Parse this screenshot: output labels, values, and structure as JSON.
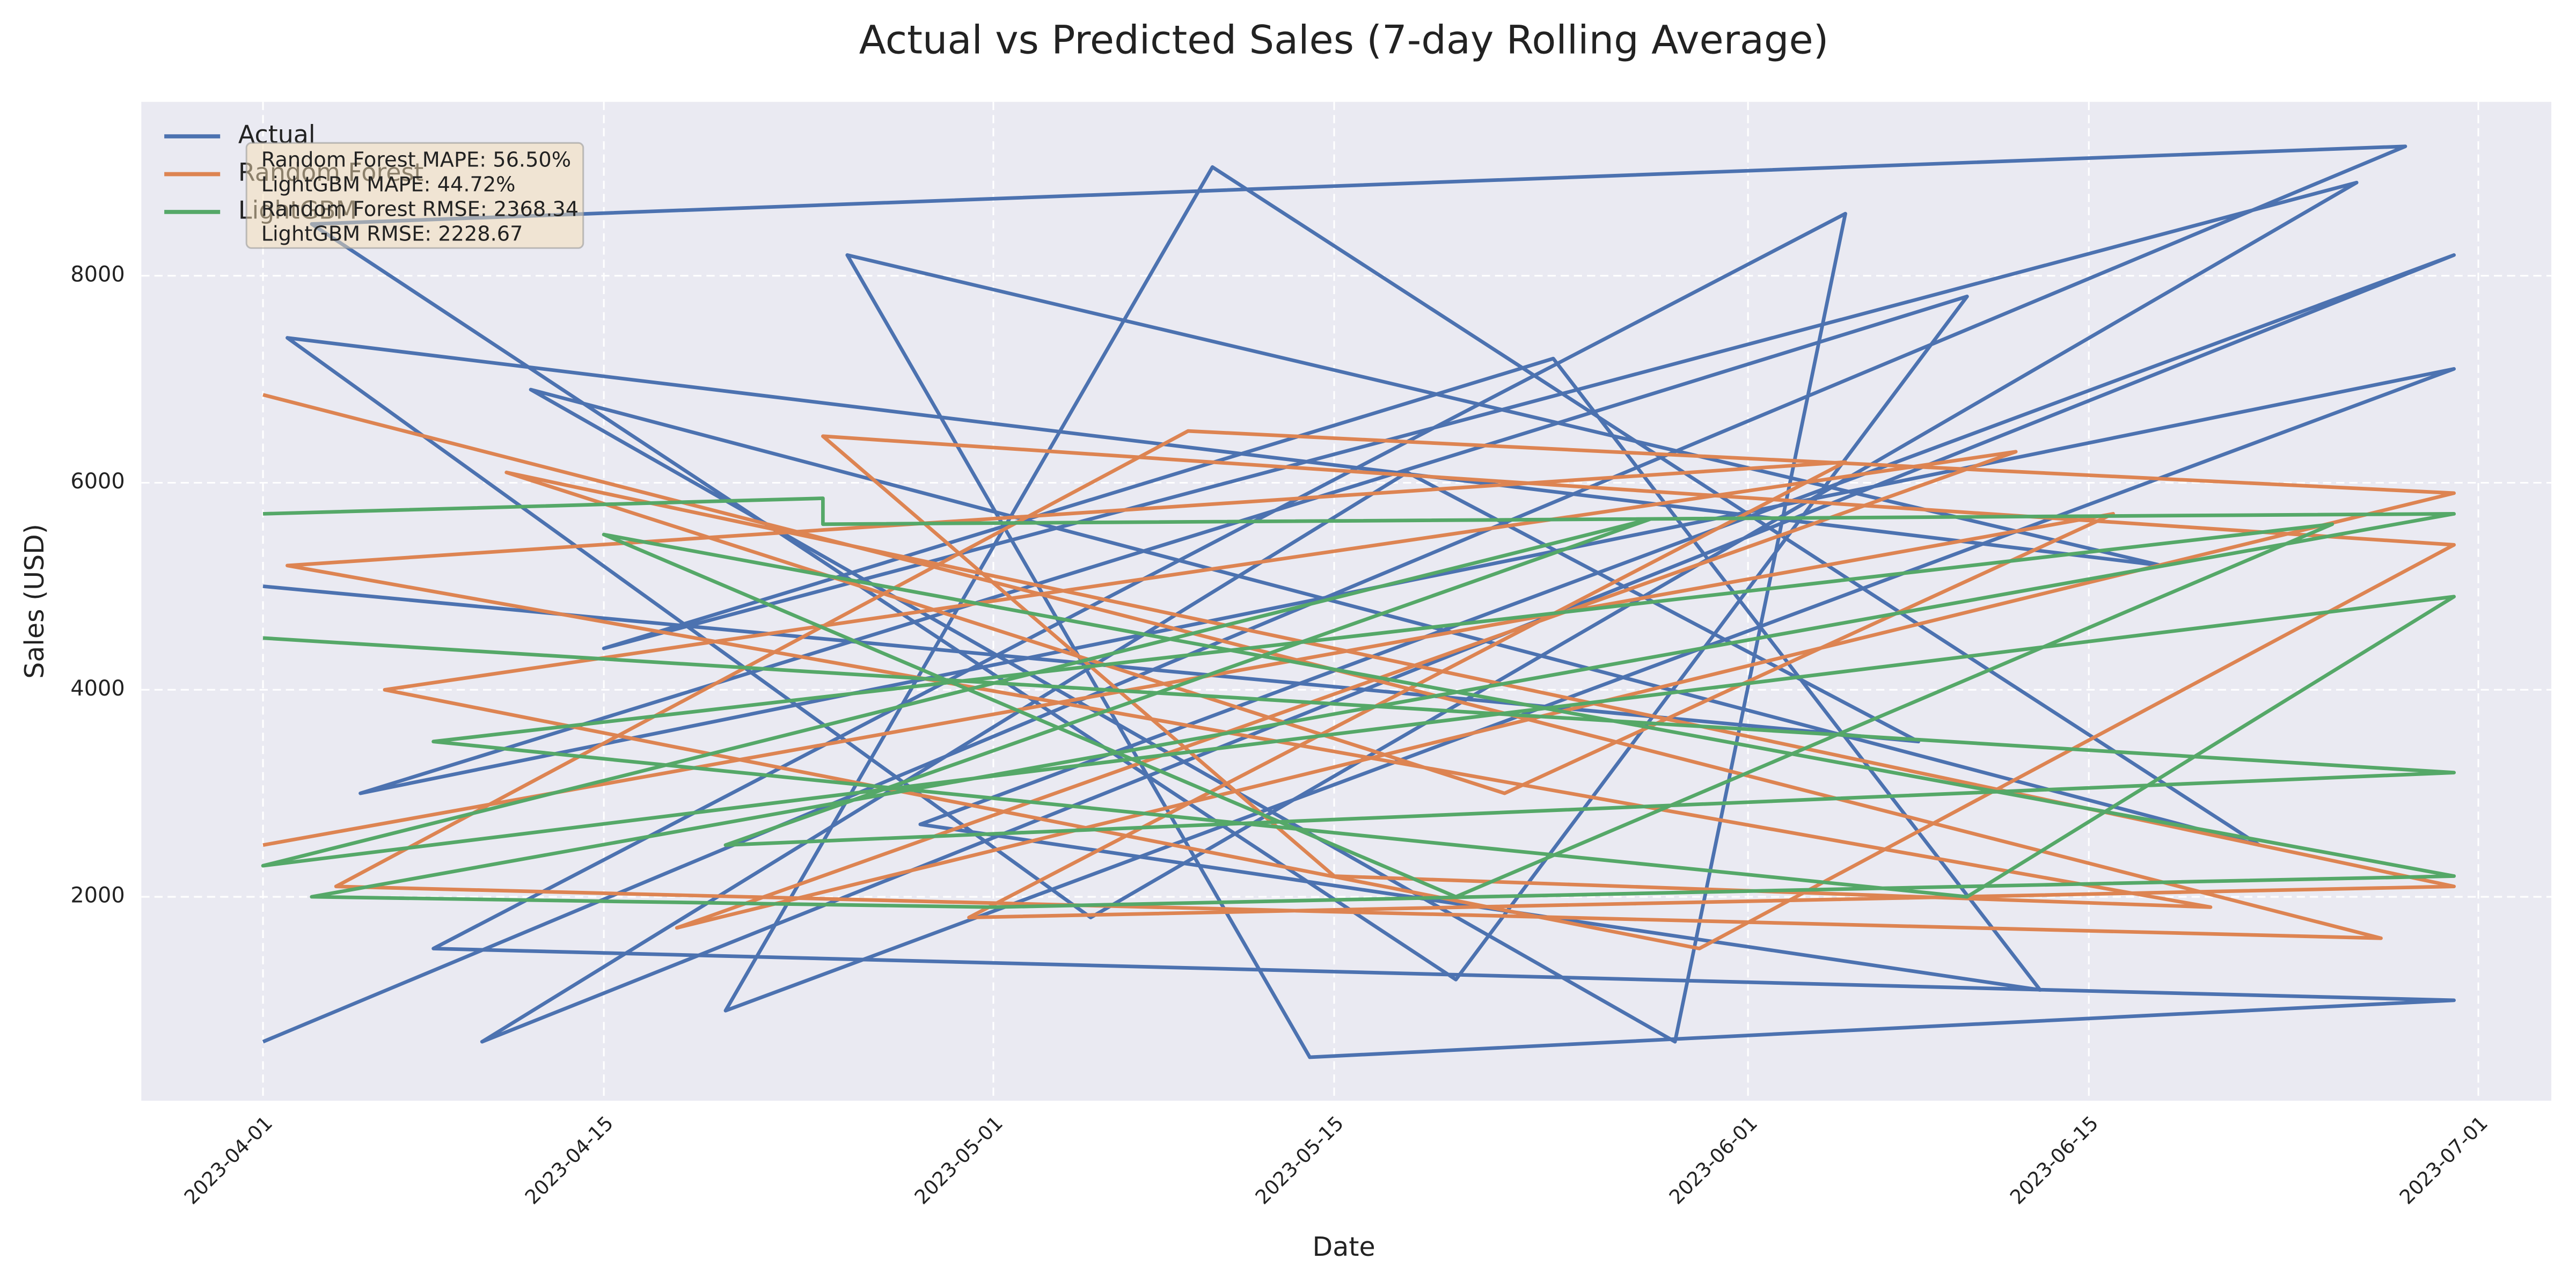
{
  "chart_data": {
    "type": "line",
    "title": "Actual vs Predicted Sales (7-day Rolling Average)",
    "xlabel": "Date",
    "ylabel": "Sales (USD)",
    "xlim": [
      "2023-03-27",
      "2023-07-04"
    ],
    "xticks": [
      "2023-04-01",
      "2023-04-15",
      "2023-05-01",
      "2023-05-15",
      "2023-06-01",
      "2023-06-15",
      "2023-07-01"
    ],
    "ylim": [
      30,
      9680
    ],
    "yticks": [
      2000,
      4000,
      6000,
      8000
    ],
    "grid": true,
    "legend": "upper left",
    "annotations": [
      "Random Forest MAPE: 56.50%",
      "LightGBM MAPE: 44.72%",
      "Random Forest RMSE: 2368.34",
      "LightGBM RMSE: 2228.67"
    ],
    "series": [
      {
        "name": "Actual",
        "color": "#4c72b0",
        "x": [
          "2023-04-01",
          "2023-06-28",
          "2023-04-03",
          "2023-05-20",
          "2023-06-10",
          "2023-04-05",
          "2023-06-30",
          "2023-04-20",
          "2023-05-10",
          "2023-06-22",
          "2023-04-12",
          "2023-05-29",
          "2023-06-05",
          "2023-04-08",
          "2023-06-30",
          "2023-05-14",
          "2023-04-25",
          "2023-06-18",
          "2023-04-02",
          "2023-05-05",
          "2023-06-26",
          "2023-04-15",
          "2023-05-24",
          "2023-06-13",
          "2023-04-28",
          "2023-06-30",
          "2023-04-10",
          "2023-05-18",
          "2023-06-08",
          "2023-04-01"
        ],
        "values": [
          600,
          9250,
          8500,
          1200,
          7800,
          3000,
          7100,
          900,
          9050,
          2500,
          6900,
          600,
          8600,
          1500,
          1000,
          450,
          8200,
          5200,
          7400,
          1800,
          8900,
          4400,
          7200,
          1100,
          2700,
          8200,
          600,
          6100,
          3500,
          5000
        ]
      },
      {
        "name": "Random Forest",
        "color": "#dd8452",
        "x": [
          "2023-04-01",
          "2023-06-27",
          "2023-04-04",
          "2023-05-09",
          "2023-06-30",
          "2023-04-18",
          "2023-06-12",
          "2023-04-06",
          "2023-05-30",
          "2023-06-30",
          "2023-04-24",
          "2023-05-15",
          "2023-06-20",
          "2023-04-02",
          "2023-06-05",
          "2023-04-30",
          "2023-06-30",
          "2023-04-11",
          "2023-05-22",
          "2023-06-16",
          "2023-04-01"
        ],
        "values": [
          6850,
          1600,
          2100,
          6500,
          5900,
          1700,
          6300,
          4000,
          1500,
          5400,
          6450,
          2200,
          1900,
          5200,
          6200,
          1800,
          2100,
          6100,
          3000,
          5700,
          2500
        ]
      },
      {
        "name": "LightGBM",
        "color": "#55a868",
        "x": [
          "2023-04-01",
          "2023-04-24",
          "2023-04-24",
          "2023-06-30",
          "2023-04-03",
          "2023-05-01",
          "2023-06-30",
          "2023-04-15",
          "2023-05-20",
          "2023-06-25",
          "2023-04-08",
          "2023-06-10",
          "2023-06-30",
          "2023-04-01",
          "2023-05-28",
          "2023-04-20",
          "2023-06-30",
          "2023-04-01"
        ],
        "values": [
          5700,
          5850,
          5600,
          5700,
          2000,
          1900,
          2200,
          5500,
          2000,
          5600,
          3500,
          2000,
          4900,
          2300,
          5650,
          2500,
          3200,
          4500
        ]
      }
    ]
  }
}
